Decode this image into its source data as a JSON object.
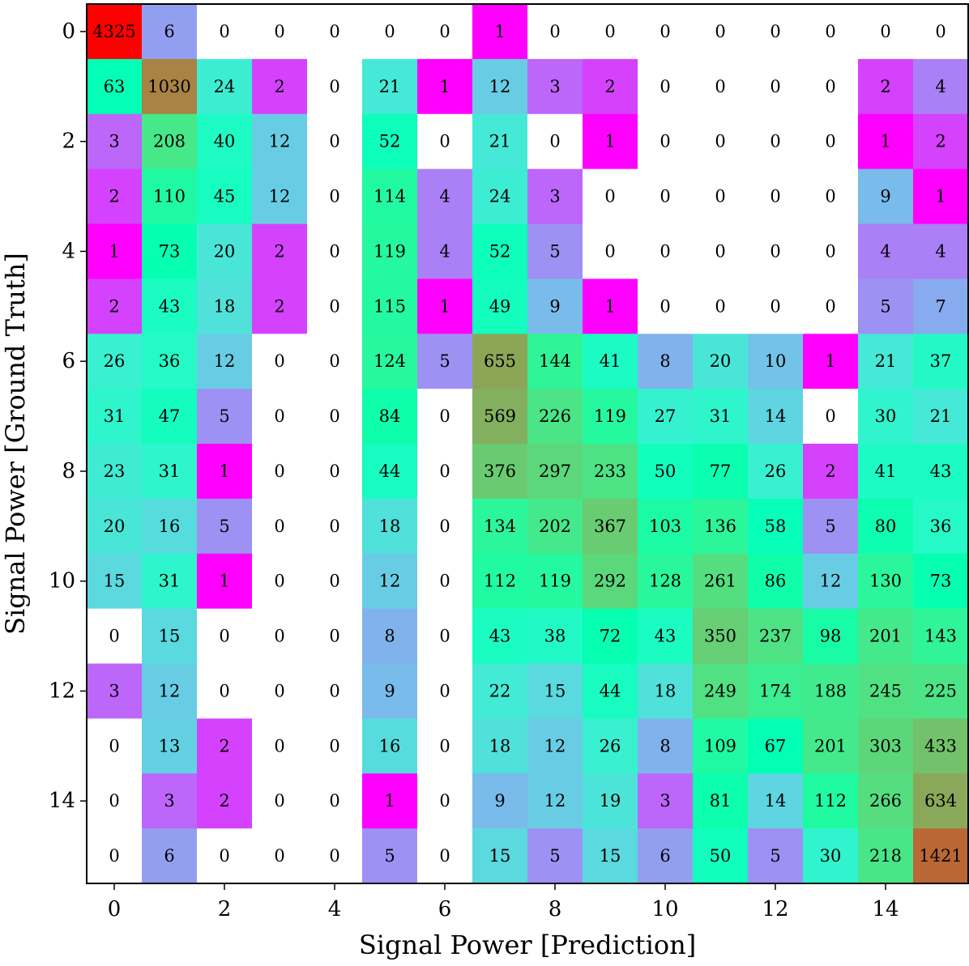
{
  "chart_data": {
    "type": "heatmap",
    "title": "",
    "xlabel": "Signal Power [Prediction]",
    "ylabel": "Signal Power [Ground Truth]",
    "x_ticks": [
      "0",
      "2",
      "4",
      "6",
      "8",
      "10",
      "12",
      "14"
    ],
    "y_ticks": [
      "0",
      "2",
      "4",
      "6",
      "8",
      "10",
      "12",
      "14"
    ],
    "colormap": "rainbow (log-scaled counts; zero cells shown white)",
    "zero_color": "#ffffff",
    "matrix": [
      [
        4325,
        6,
        0,
        0,
        0,
        0,
        0,
        1,
        0,
        0,
        0,
        0,
        0,
        0,
        0,
        0
      ],
      [
        63,
        1030,
        24,
        2,
        0,
        21,
        1,
        12,
        3,
        2,
        0,
        0,
        0,
        0,
        2,
        4
      ],
      [
        3,
        208,
        40,
        12,
        0,
        52,
        0,
        21,
        0,
        1,
        0,
        0,
        0,
        0,
        1,
        2
      ],
      [
        2,
        110,
        45,
        12,
        0,
        114,
        4,
        24,
        3,
        0,
        0,
        0,
        0,
        0,
        9,
        1
      ],
      [
        1,
        73,
        20,
        2,
        0,
        119,
        4,
        52,
        5,
        0,
        0,
        0,
        0,
        0,
        4,
        4
      ],
      [
        2,
        43,
        18,
        2,
        0,
        115,
        1,
        49,
        9,
        1,
        0,
        0,
        0,
        0,
        5,
        7
      ],
      [
        26,
        36,
        12,
        0,
        0,
        124,
        5,
        655,
        144,
        41,
        8,
        20,
        10,
        1,
        21,
        37
      ],
      [
        31,
        47,
        5,
        0,
        0,
        84,
        0,
        569,
        226,
        119,
        27,
        31,
        14,
        0,
        30,
        21
      ],
      [
        23,
        31,
        1,
        0,
        0,
        44,
        0,
        376,
        297,
        233,
        50,
        77,
        26,
        2,
        41,
        43
      ],
      [
        20,
        16,
        5,
        0,
        0,
        18,
        0,
        134,
        202,
        367,
        103,
        136,
        58,
        5,
        80,
        36
      ],
      [
        15,
        31,
        1,
        0,
        0,
        12,
        0,
        112,
        119,
        292,
        128,
        261,
        86,
        12,
        130,
        73
      ],
      [
        0,
        15,
        0,
        0,
        0,
        8,
        0,
        43,
        38,
        72,
        43,
        350,
        237,
        98,
        201,
        143
      ],
      [
        3,
        12,
        0,
        0,
        0,
        9,
        0,
        22,
        15,
        44,
        18,
        249,
        174,
        188,
        245,
        225
      ],
      [
        0,
        13,
        2,
        0,
        0,
        16,
        0,
        18,
        12,
        26,
        8,
        109,
        67,
        201,
        303,
        433
      ],
      [
        0,
        3,
        2,
        0,
        0,
        1,
        0,
        9,
        12,
        19,
        3,
        81,
        14,
        112,
        266,
        634
      ],
      [
        0,
        6,
        0,
        0,
        0,
        5,
        0,
        15,
        5,
        15,
        6,
        50,
        5,
        30,
        218,
        1421
      ]
    ]
  }
}
